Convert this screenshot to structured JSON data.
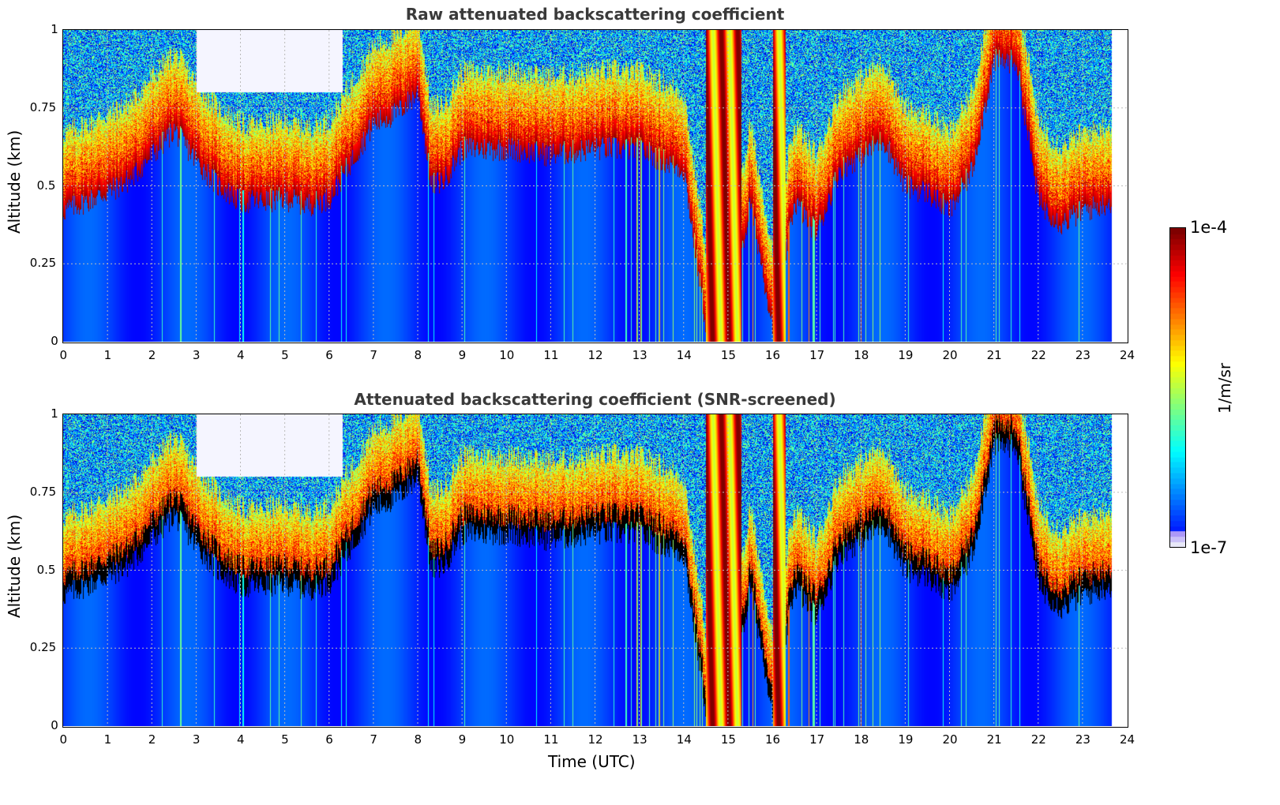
{
  "chart_data": [
    {
      "type": "heatmap",
      "title": "Raw attenuated backscattering coefficient",
      "xlabel": "",
      "ylabel": "Altitude (km)",
      "xlim": [
        0,
        24
      ],
      "ylim": [
        0,
        1
      ],
      "x_ticks": [
        "0",
        "1",
        "2",
        "3",
        "4",
        "5",
        "6",
        "7",
        "8",
        "9",
        "10",
        "11",
        "12",
        "13",
        "14",
        "15",
        "16",
        "17",
        "18",
        "19",
        "20",
        "21",
        "22",
        "23",
        "24"
      ],
      "y_ticks": [
        "0",
        "0.25",
        "0.5",
        "0.75",
        "1"
      ],
      "grid": true,
      "data_end_hour": 23.65,
      "cloud_base_km": [
        [
          0.0,
          0.42
        ],
        [
          0.5,
          0.45
        ],
        [
          1.0,
          0.48
        ],
        [
          1.5,
          0.52
        ],
        [
          2.0,
          0.6
        ],
        [
          2.5,
          0.68
        ],
        [
          3.0,
          0.58
        ],
        [
          3.5,
          0.5
        ],
        [
          4.0,
          0.45
        ],
        [
          4.5,
          0.45
        ],
        [
          5.0,
          0.46
        ],
        [
          5.5,
          0.44
        ],
        [
          6.0,
          0.46
        ],
        [
          6.5,
          0.58
        ],
        [
          7.0,
          0.7
        ],
        [
          7.5,
          0.73
        ],
        [
          8.0,
          0.8
        ],
        [
          8.3,
          0.5
        ],
        [
          8.6,
          0.52
        ],
        [
          9.0,
          0.62
        ],
        [
          10.0,
          0.62
        ],
        [
          11.0,
          0.6
        ],
        [
          12.0,
          0.62
        ],
        [
          13.0,
          0.62
        ],
        [
          14.0,
          0.55
        ],
        [
          14.5,
          0.05
        ],
        [
          15.0,
          0.0
        ],
        [
          15.5,
          0.45
        ],
        [
          16.0,
          0.05
        ],
        [
          16.5,
          0.45
        ],
        [
          17.0,
          0.35
        ],
        [
          17.5,
          0.55
        ],
        [
          18.0,
          0.6
        ],
        [
          18.5,
          0.65
        ],
        [
          19.0,
          0.5
        ],
        [
          19.5,
          0.48
        ],
        [
          20.0,
          0.42
        ],
        [
          20.5,
          0.55
        ],
        [
          21.0,
          0.9
        ],
        [
          21.5,
          0.9
        ],
        [
          22.0,
          0.45
        ],
        [
          22.5,
          0.38
        ],
        [
          23.0,
          0.42
        ],
        [
          23.65,
          0.45
        ]
      ]
    },
    {
      "type": "heatmap",
      "title": "Attenuated backscattering coefficient (SNR-screened)",
      "xlabel": "Time (UTC)",
      "ylabel": "Altitude (km)",
      "xlim": [
        0,
        24
      ],
      "ylim": [
        0,
        1
      ],
      "x_ticks": [
        "0",
        "1",
        "2",
        "3",
        "4",
        "5",
        "6",
        "7",
        "8",
        "9",
        "10",
        "11",
        "12",
        "13",
        "14",
        "15",
        "16",
        "17",
        "18",
        "19",
        "20",
        "21",
        "22",
        "23",
        "24"
      ],
      "y_ticks": [
        "0",
        "0.25",
        "0.5",
        "0.75",
        "1"
      ],
      "grid": true,
      "data_end_hour": 23.65
    }
  ],
  "colorbar": {
    "max_label": "1e-4",
    "min_label": "1e-7",
    "unit": "1/m/sr",
    "colormap": "jet",
    "low_color": "#e8e8f8",
    "high_color": "#800000"
  }
}
